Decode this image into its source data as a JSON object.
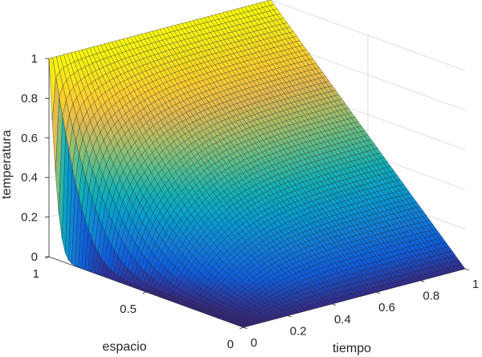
{
  "chart_data": {
    "type": "surface",
    "title": "",
    "xlabel": "tiempo",
    "ylabel": "espacio",
    "zlabel": "temperatura",
    "xlim": [
      0,
      1
    ],
    "ylim": [
      0,
      1
    ],
    "zlim": [
      0,
      1
    ],
    "xticks": [
      "0",
      "0.2",
      "0.4",
      "0.6",
      "0.8",
      "1"
    ],
    "yticks": [
      "0",
      "0.5",
      "1"
    ],
    "zticks": [
      "0",
      "0.2",
      "0.4",
      "0.6",
      "0.8",
      "1"
    ],
    "grid": true,
    "colormap": "parula",
    "mesh_resolution": [
      60,
      60
    ],
    "surface_samples": {
      "note_on_shape": "temperatura(tiempo, espacio): equals 1 along espacio = 1 and 0 along espacio = 0; near tiempo = 0 it rises steeply only near espacio = 1, spreading toward a linear profile as tiempo -> 1",
      "tiempo_0": {
        "espacio": [
          0,
          0.25,
          0.5,
          0.75,
          1
        ],
        "temperatura": [
          0,
          0,
          0,
          0.02,
          1
        ]
      },
      "tiempo_1": {
        "espacio": [
          0,
          0.25,
          0.5,
          0.75,
          1
        ],
        "temperatura": [
          0,
          0.23,
          0.47,
          0.73,
          1
        ]
      }
    }
  }
}
